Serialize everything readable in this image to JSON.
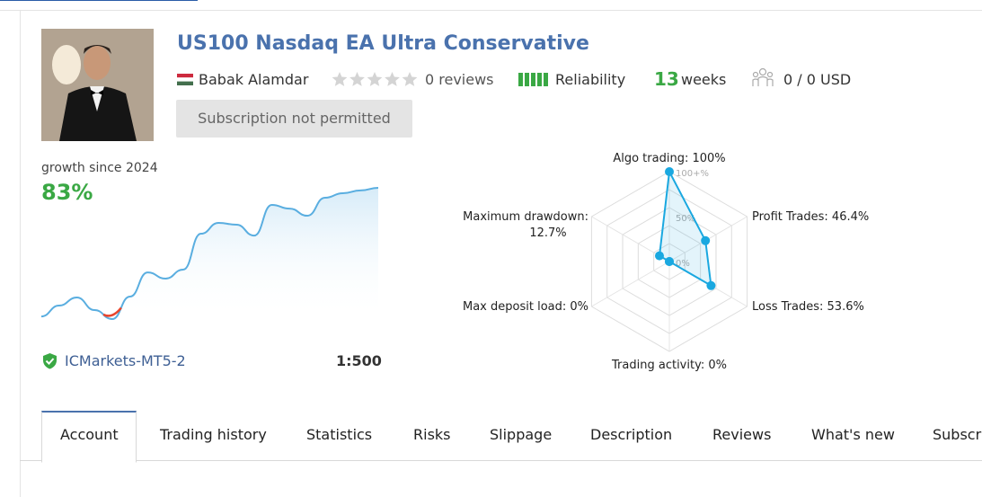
{
  "header": {
    "title": "US100 Nasdaq EA Ultra Conservative",
    "author": "Babak Alamdar",
    "reviews": "0 reviews",
    "reliability": "Reliability",
    "weeks_number": "13",
    "weeks_unit": "weeks",
    "subscribers": "0 / 0 USD",
    "button": "Subscription not permitted"
  },
  "growth": {
    "label": "growth since 2024",
    "value": "83%",
    "chart_data": {
      "type": "line",
      "color": "#5aaee0",
      "negative_color": "#e8452c",
      "values": [
        0,
        7,
        12.2,
        4.1,
        -1.7,
        12.8,
        28.4,
        24.4,
        30.2,
        53.4,
        60.4,
        59.2,
        52.2,
        72,
        69.6,
        65,
        76.6,
        79.5,
        81.3,
        83
      ]
    },
    "broker": "ICMarkets-MT5-2",
    "leverage": "1:500"
  },
  "radar": {
    "chart_data": {
      "type": "radar",
      "color": "#1aa8e0",
      "scale_labels": [
        "100+%",
        "50%",
        "0%"
      ],
      "axes": [
        {
          "label": "Algo trading: 100%",
          "value": 100
        },
        {
          "label": "Profit Trades: 46.4%",
          "value": 46.4
        },
        {
          "label": "Loss Trades: 53.6%",
          "value": 53.6
        },
        {
          "label": "Trading activity: 0%",
          "value": 0
        },
        {
          "label": "Max deposit load: 0%",
          "value": 0
        },
        {
          "label": "Maximum drawdown: 12.7%",
          "value": 12.7
        }
      ]
    }
  },
  "tabs": [
    "Account",
    "Trading history",
    "Statistics",
    "Risks",
    "Slippage",
    "Description",
    "Reviews",
    "What's new",
    "Subscri"
  ]
}
